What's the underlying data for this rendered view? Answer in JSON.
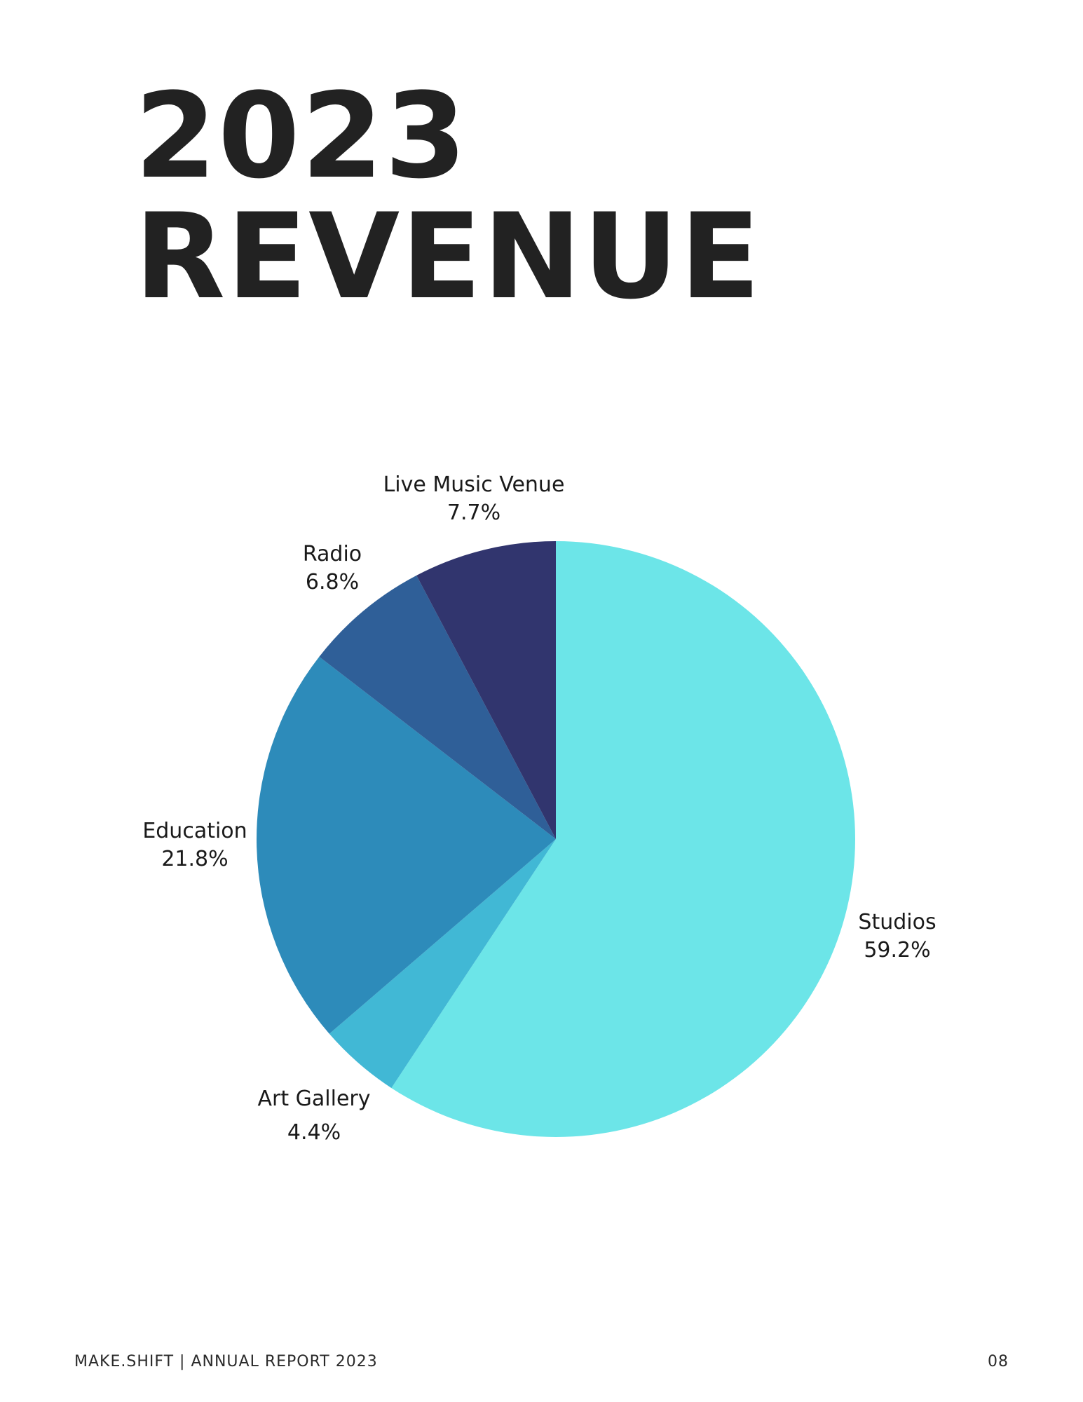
{
  "page": {
    "title_line1": "2023",
    "title_line2": "REVENUE",
    "footer_left": "MAKE.SHIFT | ANNUAL REPORT 2023",
    "page_number": "08"
  },
  "chart_data": {
    "type": "pie",
    "title": "2023 REVENUE",
    "start": "12 o'clock",
    "direction": "clockwise",
    "slices": [
      {
        "label": "Studios",
        "value": 59.2,
        "display": "59.2%",
        "color": "#6ce5e8"
      },
      {
        "label": "Art Gallery",
        "value": 4.4,
        "display": "4.4%",
        "color": "#41b8d5"
      },
      {
        "label": "Education",
        "value": 21.8,
        "display": "21.8%",
        "color": "#2d8bba"
      },
      {
        "label": "Radio",
        "value": 6.8,
        "display": "6.8%",
        "color": "#2f5f98"
      },
      {
        "label": "Live Music Venue",
        "value": 7.7,
        "display": "7.7%",
        "color": "#31356e"
      }
    ]
  }
}
